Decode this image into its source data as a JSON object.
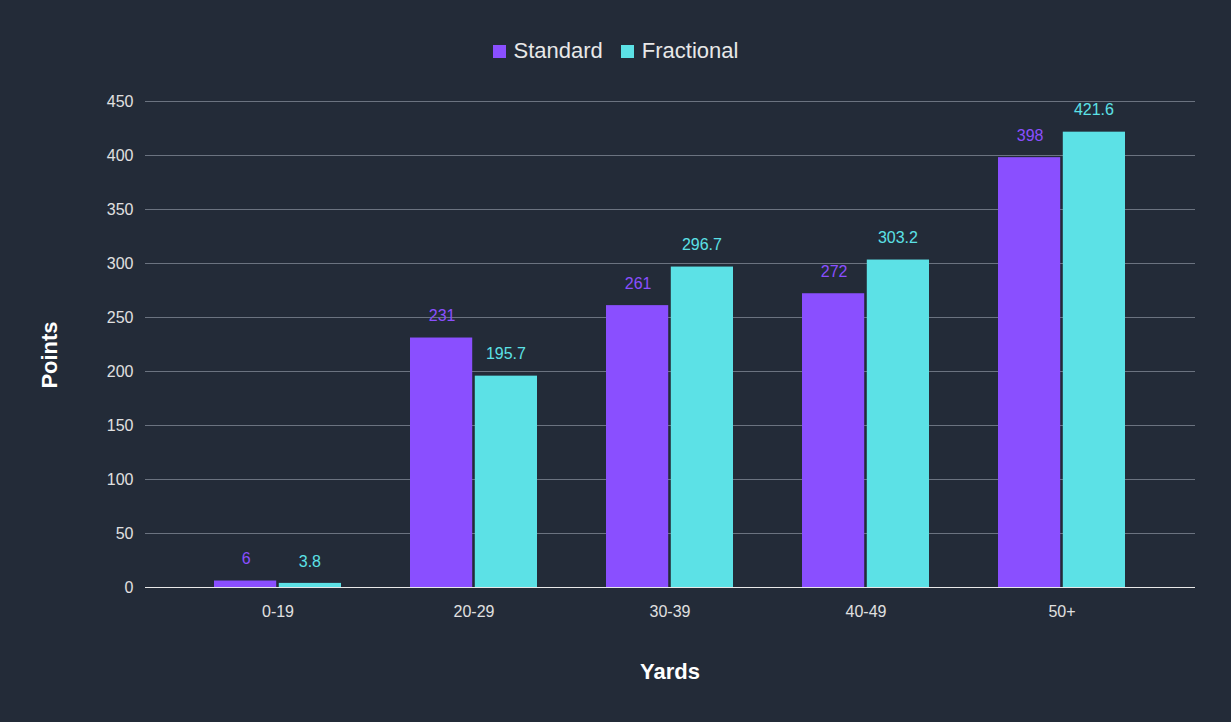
{
  "chart_data": {
    "type": "bar",
    "categories": [
      "0-19",
      "20-29",
      "30-39",
      "40-49",
      "50+"
    ],
    "series": [
      {
        "name": "Standard",
        "color": "#8a4fff",
        "values": [
          6,
          231,
          261,
          272,
          398
        ]
      },
      {
        "name": "Fractional",
        "color": "#5ce1e6",
        "values": [
          3.8,
          195.7,
          296.7,
          303.2,
          421.6
        ]
      }
    ],
    "xlabel": "Yards",
    "ylabel": "Points",
    "ylim": [
      0,
      450
    ],
    "yticks": [
      0,
      50,
      100,
      150,
      200,
      250,
      300,
      350,
      400,
      450
    ],
    "grid": true,
    "legend": "top",
    "data_labels": true
  }
}
